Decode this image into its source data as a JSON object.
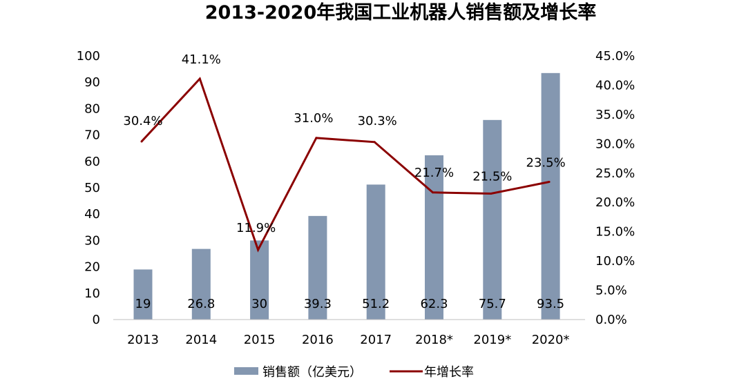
{
  "chart_data": {
    "type": "bar",
    "title": "2013-2020年我国工业机器人销售额及增长率",
    "categories": [
      "2013",
      "2014",
      "2015",
      "2016",
      "2017",
      "2018*",
      "2019*",
      "2020*"
    ],
    "series": [
      {
        "name": "销售额（亿美元）",
        "type": "bar",
        "axis": "left",
        "values": [
          19,
          26.8,
          30,
          39.3,
          51.2,
          62.3,
          75.7,
          93.5
        ],
        "labels": [
          "19",
          "26.8",
          "30",
          "39.3",
          "51.2",
          "62.3",
          "75.7",
          "93.5"
        ],
        "color": "#8497b0"
      },
      {
        "name": "年增长率",
        "type": "line",
        "axis": "right",
        "values": [
          30.4,
          41.1,
          11.9,
          31.0,
          30.3,
          21.7,
          21.5,
          23.5
        ],
        "labels": [
          "30.4%",
          "41.1%",
          "11.9%",
          "31.0%",
          "30.3%",
          "21.7%",
          "21.5%",
          "23.5%"
        ],
        "color": "#8b0000"
      }
    ],
    "y_left": {
      "lim": [
        0,
        100
      ],
      "ticks": [
        0,
        10,
        20,
        30,
        40,
        50,
        60,
        70,
        80,
        90,
        100
      ],
      "tick_labels": [
        "0",
        "10",
        "20",
        "30",
        "40",
        "50",
        "60",
        "70",
        "80",
        "90",
        "100"
      ]
    },
    "y_right": {
      "lim": [
        0,
        45
      ],
      "ticks": [
        0,
        5,
        10,
        15,
        20,
        25,
        30,
        35,
        40,
        45
      ],
      "tick_labels": [
        "0.0%",
        "5.0%",
        "10.0%",
        "15.0%",
        "20.0%",
        "25.0%",
        "30.0%",
        "35.0%",
        "40.0%",
        "45.0%"
      ]
    },
    "legend_position": "bottom",
    "grid": false
  }
}
